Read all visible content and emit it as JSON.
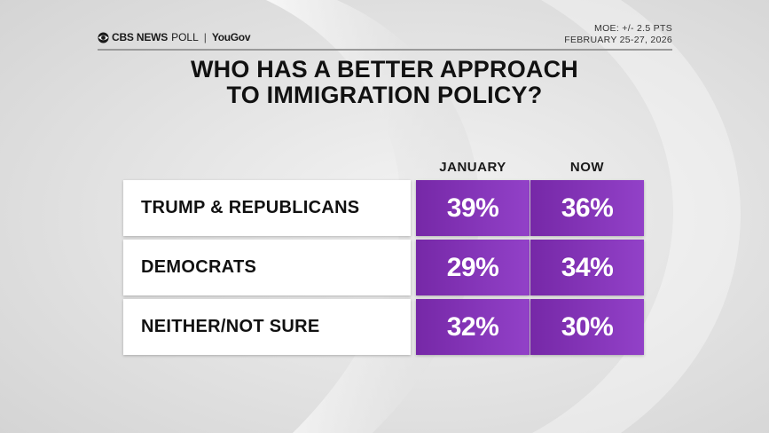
{
  "header": {
    "logo_brand": "CBS NEWS",
    "logo_poll": "POLL",
    "logo_sep": "|",
    "logo_partner": "YouGov",
    "moe": "MOE: +/- 2.5 PTS",
    "dates": "FEBRUARY 25-27, 2026"
  },
  "title_line1": "WHO HAS A BETTER APPROACH",
  "title_line2": "TO IMMIGRATION POLICY?",
  "colors": {
    "bar_start": "#7628a7",
    "bar_end": "#9241c8",
    "label_bg": "#ffffff",
    "text": "#111111"
  },
  "chart_data": {
    "type": "table",
    "title": "WHO HAS A BETTER APPROACH TO IMMIGRATION POLICY?",
    "columns": [
      "JANUARY",
      "NOW"
    ],
    "rows": [
      {
        "label": "TRUMP & REPUBLICANS",
        "values": [
          39,
          36
        ],
        "display": [
          "39%",
          "36%"
        ]
      },
      {
        "label": "DEMOCRATS",
        "values": [
          29,
          34
        ],
        "display": [
          "29%",
          "34%"
        ]
      },
      {
        "label": "NEITHER/NOT SURE",
        "values": [
          32,
          30
        ],
        "display": [
          "32%",
          "30%"
        ]
      }
    ],
    "unit": "%"
  }
}
